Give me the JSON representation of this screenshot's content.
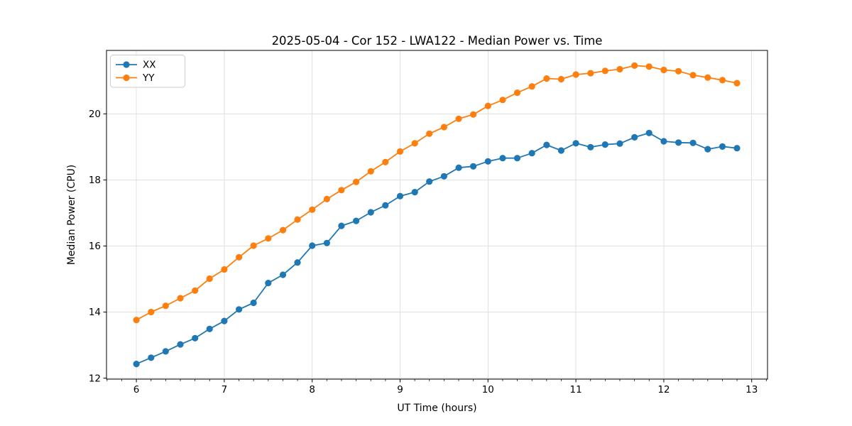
{
  "figure": {
    "background": "#ffffff"
  },
  "chart_data": {
    "type": "line",
    "title": "2025-05-04 - Cor 152 - LWA122 - Median Power vs. Time",
    "xlabel": "UT Time (hours)",
    "ylabel": "Median Power (CPU)",
    "xlim": [
      5.66,
      13.18
    ],
    "ylim": [
      11.97,
      21.92
    ],
    "xticks": [
      6,
      7,
      8,
      9,
      10,
      11,
      12,
      13
    ],
    "yticks": [
      12,
      14,
      16,
      18,
      20
    ],
    "x_minor_step": 0.1667,
    "grid": true,
    "legend_position": "upper-left",
    "x": [
      6.0,
      6.167,
      6.333,
      6.5,
      6.667,
      6.833,
      7.0,
      7.167,
      7.333,
      7.5,
      7.667,
      7.833,
      8.0,
      8.167,
      8.333,
      8.5,
      8.667,
      8.833,
      9.0,
      9.167,
      9.333,
      9.5,
      9.667,
      9.833,
      10.0,
      10.167,
      10.333,
      10.5,
      10.667,
      10.833,
      11.0,
      11.167,
      11.333,
      11.5,
      11.667,
      11.833,
      12.0,
      12.167,
      12.333,
      12.5,
      12.667,
      12.833
    ],
    "series": [
      {
        "name": "XX",
        "color": "#1f77b4",
        "marker": "circle",
        "values": [
          12.43,
          12.62,
          12.81,
          13.02,
          13.21,
          13.49,
          13.73,
          14.08,
          14.28,
          14.88,
          15.13,
          15.5,
          16.01,
          16.09,
          16.61,
          16.76,
          17.02,
          17.23,
          17.51,
          17.63,
          17.95,
          18.11,
          18.37,
          18.41,
          18.56,
          18.66,
          18.66,
          18.81,
          19.06,
          18.89,
          19.11,
          18.99,
          19.07,
          19.1,
          19.29,
          19.42,
          19.17,
          19.13,
          19.12,
          18.93,
          19.01,
          18.96
        ]
      },
      {
        "name": "YY",
        "color": "#ff7f0e",
        "marker": "circle",
        "values": [
          13.76,
          14.0,
          14.19,
          14.42,
          14.65,
          15.01,
          15.29,
          15.66,
          16.01,
          16.23,
          16.48,
          16.8,
          17.1,
          17.42,
          17.69,
          17.94,
          18.26,
          18.54,
          18.86,
          19.11,
          19.4,
          19.6,
          19.85,
          19.98,
          20.24,
          20.42,
          20.64,
          20.83,
          21.07,
          21.05,
          21.19,
          21.23,
          21.3,
          21.35,
          21.46,
          21.43,
          21.33,
          21.29,
          21.17,
          21.1,
          21.02,
          20.93
        ]
      }
    ]
  },
  "colors": {
    "grid": "#e0e0e0",
    "spine": "#000000",
    "tick": "#000000",
    "text": "#000000",
    "legend_border": "#cccccc"
  }
}
